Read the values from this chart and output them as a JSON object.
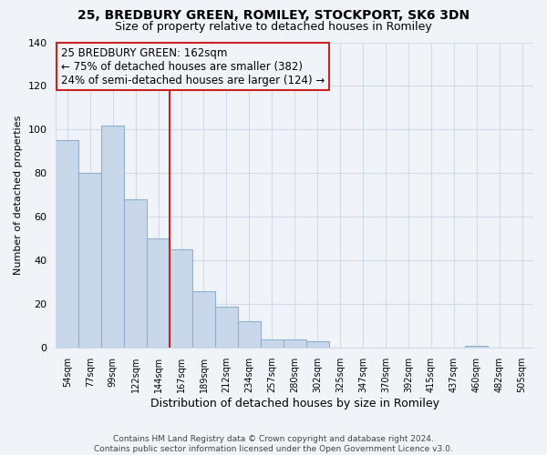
{
  "title1": "25, BREDBURY GREEN, ROMILEY, STOCKPORT, SK6 3DN",
  "title2": "Size of property relative to detached houses in Romiley",
  "xlabel": "Distribution of detached houses by size in Romiley",
  "ylabel": "Number of detached properties",
  "bin_labels": [
    "54sqm",
    "77sqm",
    "99sqm",
    "122sqm",
    "144sqm",
    "167sqm",
    "189sqm",
    "212sqm",
    "234sqm",
    "257sqm",
    "280sqm",
    "302sqm",
    "325sqm",
    "347sqm",
    "370sqm",
    "392sqm",
    "415sqm",
    "437sqm",
    "460sqm",
    "482sqm",
    "505sqm"
  ],
  "bar_values": [
    95,
    80,
    102,
    68,
    50,
    45,
    26,
    19,
    12,
    4,
    4,
    3,
    0,
    0,
    0,
    0,
    0,
    0,
    1,
    0,
    0
  ],
  "bar_color": "#c8d8ea",
  "bar_edge_color": "#8fb0cc",
  "vline_color": "#cc2222",
  "vline_x_index": 5,
  "ann_line1": "25 BREDBURY GREEN: 162sqm",
  "ann_line2": "← 75% of detached houses are smaller (382)",
  "ann_line3": "24% of semi-detached houses are larger (124) →",
  "ylim": [
    0,
    140
  ],
  "yticks": [
    0,
    20,
    40,
    60,
    80,
    100,
    120,
    140
  ],
  "footer_text": "Contains HM Land Registry data © Crown copyright and database right 2024.\nContains public sector information licensed under the Open Government Licence v3.0.",
  "background_color": "#f0f4f8",
  "grid_color": "#d0dce8",
  "title1_fontsize": 10,
  "title2_fontsize": 9,
  "ylabel_fontsize": 8,
  "xlabel_fontsize": 9,
  "footer_fontsize": 6.5,
  "ann_fontsize": 8.5
}
